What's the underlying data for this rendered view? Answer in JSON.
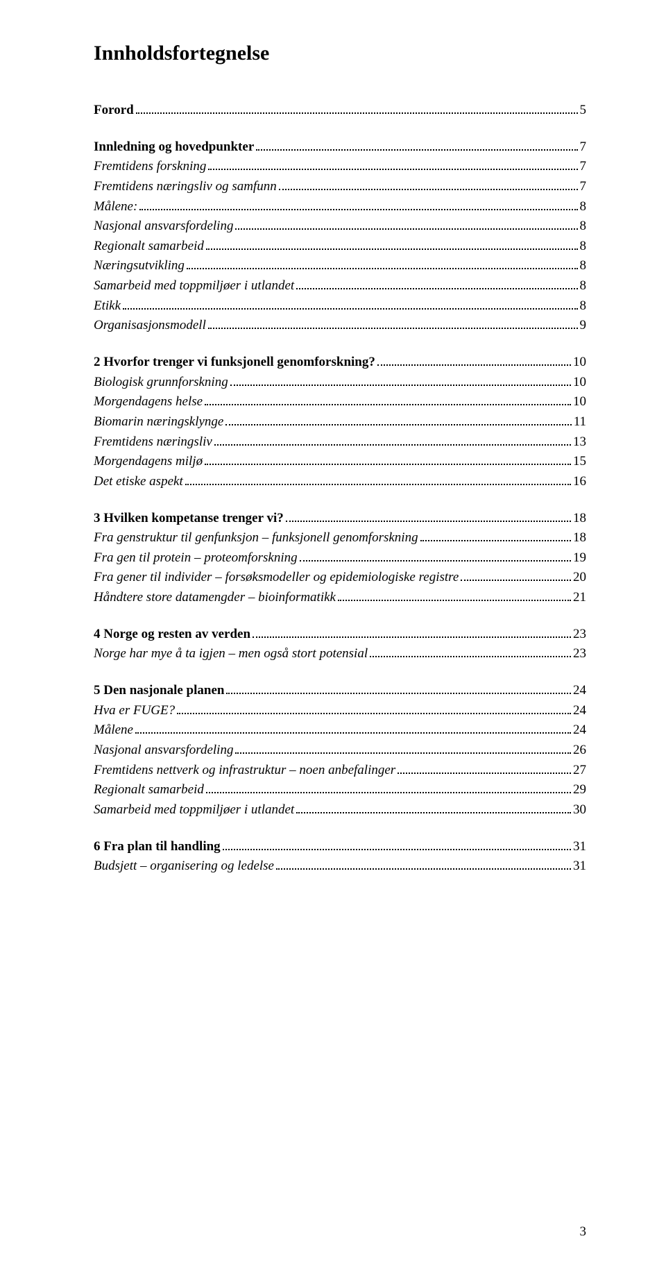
{
  "title": "Innholdsfortegnelse",
  "pageNumber": "3",
  "style": {
    "bg": "#ffffff",
    "text": "#000000",
    "titleFontSize": 30,
    "entryFontSize": 19,
    "font": "Times New Roman"
  },
  "groups": [
    {
      "entries": [
        {
          "label": "Forord",
          "page": "5",
          "bold": true
        }
      ]
    },
    {
      "entries": [
        {
          "label": "Innledning og hovedpunkter",
          "page": "7",
          "bold": true
        },
        {
          "label": "Fremtidens forskning",
          "page": "7",
          "italic": true
        },
        {
          "label": "Fremtidens næringsliv og samfunn",
          "page": "7",
          "italic": true
        },
        {
          "label": "Målene:",
          "page": "8",
          "italic": true
        },
        {
          "label": "Nasjonal ansvarsfordeling",
          "page": "8",
          "italic": true
        },
        {
          "label": "Regionalt samarbeid",
          "page": "8",
          "italic": true
        },
        {
          "label": "Næringsutvikling",
          "page": "8",
          "italic": true
        },
        {
          "label": "Samarbeid med toppmiljøer i utlandet",
          "page": "8",
          "italic": true
        },
        {
          "label": "Etikk",
          "page": "8",
          "italic": true
        },
        {
          "label": "Organisasjonsmodell",
          "page": "9",
          "italic": true
        }
      ]
    },
    {
      "entries": [
        {
          "label": "2 Hvorfor trenger vi funksjonell genomforskning?",
          "page": "10",
          "bold": true
        },
        {
          "label": "Biologisk grunnforskning",
          "page": "10",
          "italic": true
        },
        {
          "label": "Morgendagens helse",
          "page": "10",
          "italic": true
        },
        {
          "label": "Biomarin næringsklynge",
          "page": "11",
          "italic": true
        },
        {
          "label": "Fremtidens næringsliv",
          "page": "13",
          "italic": true
        },
        {
          "label": "Morgendagens miljø",
          "page": "15",
          "italic": true
        },
        {
          "label": "Det etiske aspekt",
          "page": "16",
          "italic": true
        }
      ]
    },
    {
      "entries": [
        {
          "label": "3 Hvilken kompetanse trenger vi?",
          "page": "18",
          "bold": true
        },
        {
          "label": "Fra genstruktur til genfunksjon – funksjonell genomforskning",
          "page": "18",
          "italic": true
        },
        {
          "label": "Fra gen til protein – proteomforskning",
          "page": "19",
          "italic": true
        },
        {
          "label": "Fra gener til individer – forsøksmodeller og epidemiologiske registre",
          "page": "20",
          "italic": true
        },
        {
          "label": "Håndtere store datamengder – bioinformatikk",
          "page": "21",
          "italic": true
        }
      ]
    },
    {
      "entries": [
        {
          "label": "4 Norge og resten av verden",
          "page": "23",
          "bold": true
        },
        {
          "label": "Norge har mye å ta igjen – men også stort potensial",
          "page": "23",
          "italic": true
        }
      ]
    },
    {
      "entries": [
        {
          "label": "5 Den nasjonale planen",
          "page": "24",
          "bold": true
        },
        {
          "label": "Hva er FUGE?",
          "page": "24",
          "italic": true
        },
        {
          "label": "Målene",
          "page": "24",
          "italic": true
        },
        {
          "label": "Nasjonal ansvarsfordeling",
          "page": "26",
          "italic": true
        },
        {
          "label": "Fremtidens nettverk og infrastruktur – noen anbefalinger",
          "page": "27",
          "italic": true
        },
        {
          "label": "Regionalt samarbeid",
          "page": "29",
          "italic": true
        },
        {
          "label": "Samarbeid med toppmiljøer i utlandet",
          "page": "30",
          "italic": true
        }
      ]
    },
    {
      "entries": [
        {
          "label": "6 Fra plan til handling",
          "page": "31",
          "bold": true
        },
        {
          "label": "Budsjett – organisering og ledelse",
          "page": "31",
          "italic": true
        }
      ]
    }
  ]
}
